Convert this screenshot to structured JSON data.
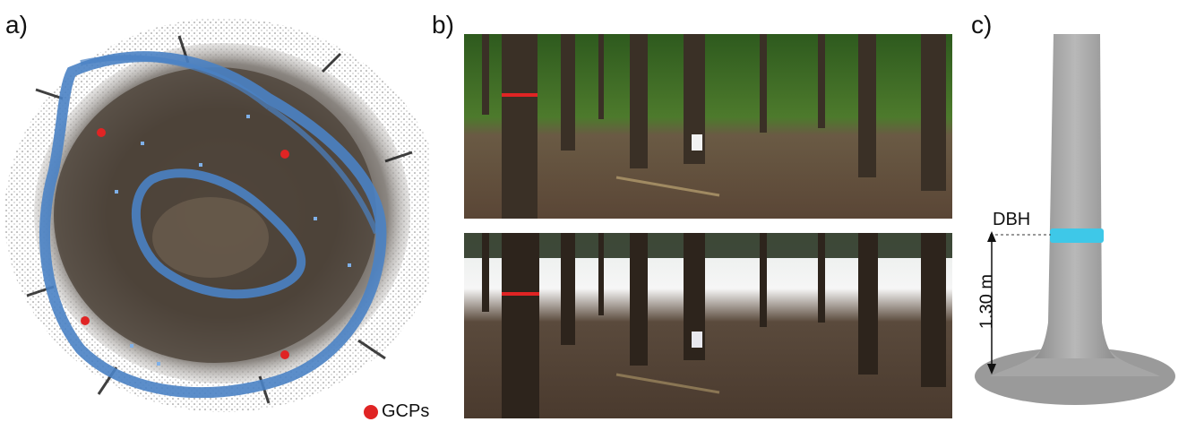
{
  "panels": {
    "a": {
      "label": "a)",
      "legend_text": "GCPs",
      "colors": {
        "trajectory": "#4a82c4",
        "gcp": "#e02424",
        "points": "#1a1a1a"
      }
    },
    "b": {
      "label": "b)",
      "marker_color": "#e02424"
    },
    "c": {
      "label": "c)",
      "measure_label": "DBH",
      "height_label": "1.30 m",
      "colors": {
        "ring": "#3ec8e8",
        "stem": "#a8a8a8"
      }
    }
  }
}
